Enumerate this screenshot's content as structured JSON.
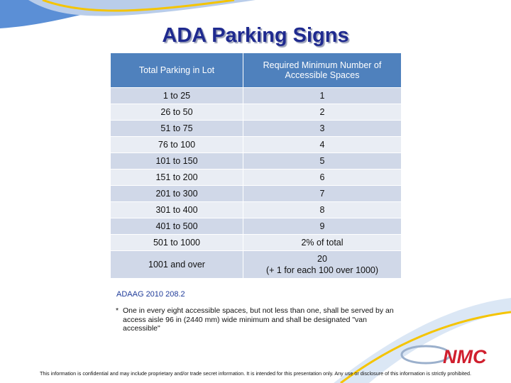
{
  "title": "ADA Parking Signs",
  "table": {
    "headers": [
      "Total Parking in Lot",
      "Required Minimum Number of Accessible Spaces"
    ],
    "rows": [
      [
        "1 to 25",
        "1"
      ],
      [
        "26 to 50",
        "2"
      ],
      [
        "51 to 75",
        "3"
      ],
      [
        "76 to 100",
        "4"
      ],
      [
        "101 to 150",
        "5"
      ],
      [
        "151 to 200",
        "6"
      ],
      [
        "201 to 300",
        "7"
      ],
      [
        "301 to 400",
        "8"
      ],
      [
        "401 to 500",
        "9"
      ],
      [
        "501 to 1000",
        "2% of total"
      ],
      [
        "1001 and over",
        "20\n(+ 1 for each 100 over 1000)"
      ]
    ]
  },
  "source": "ADAAG 2010 208.2",
  "footnote": {
    "marker": "*",
    "text": "One in every eight accessible spaces, but not less than one, shall be served by an access aisle 96 in (2440 mm) wide minimum and shall be designated \"van accessible\""
  },
  "logo": "NMC",
  "disclaimer": "This information is confidential and may include proprietary and/or trade secret information. It is intended for this presentation only. Any use or disclosure of this information is strictly prohibited."
}
